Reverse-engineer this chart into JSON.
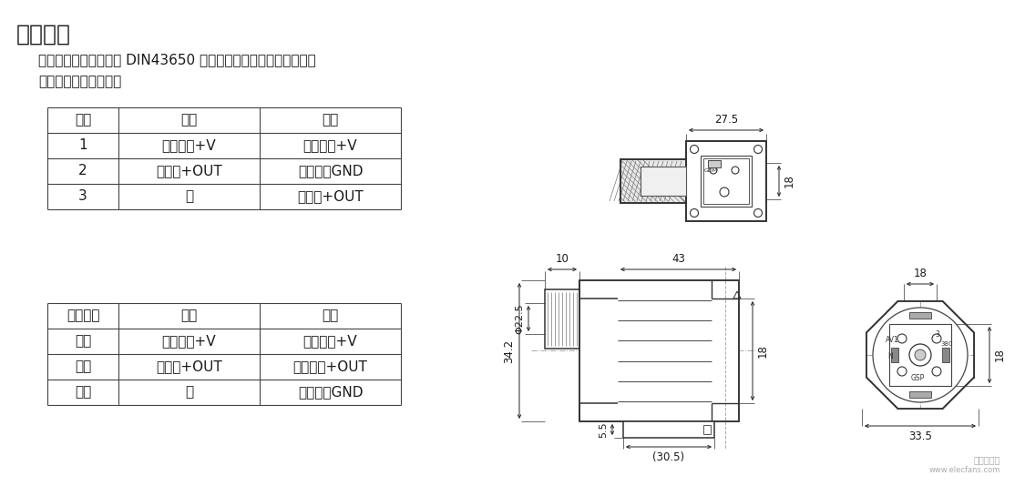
{
  "title": "电气连接",
  "desc1": "变送器与外部电路通过 DIN43650 进口防爆插头座进行电气连接。",
  "desc2": "插脚的端子定义如下：",
  "table1_headers": [
    "插脚",
    "二线",
    "三线"
  ],
  "table1_rows": [
    [
      "1",
      "电源正：+V",
      "正电源：+V"
    ],
    [
      "2",
      "信号：+OUT",
      "公共端：GND"
    ],
    [
      "3",
      "空",
      "信号：+OUT"
    ]
  ],
  "table2_headers": [
    "电缆颜色",
    "二线",
    "三线"
  ],
  "table2_rows": [
    [
      "黑色",
      "电源正：+V",
      "电源正：+V"
    ],
    [
      "红色",
      "信号：+OUT",
      "输出正：+OUT"
    ],
    [
      "白色",
      "空",
      "公共端：GND"
    ]
  ],
  "bg_color": "#ffffff",
  "text_color": "#1a1a1a",
  "table_line_color": "#444444",
  "dim_color": "#1a1a1a"
}
